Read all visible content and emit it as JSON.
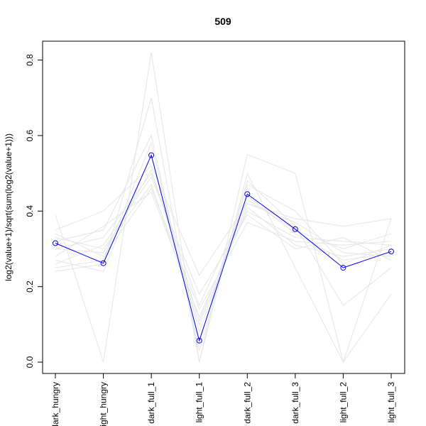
{
  "chart_data": {
    "type": "line",
    "title": "509",
    "xlabel": "",
    "ylabel": "log2(value+1)/sqrt(sum(log2(value+1)))",
    "categories": [
      "dark_hungry",
      "light_hungry",
      "dark_full_1",
      "light_full_1",
      "dark_full_2",
      "dark_full_3",
      "light_full_2",
      "light_full_3"
    ],
    "ylim": [
      -0.03,
      0.85
    ],
    "yticks": [
      0.0,
      0.2,
      0.4,
      0.6,
      0.8
    ],
    "ytick_labels": [
      "0.0",
      "0.2",
      "0.4",
      "0.6",
      "0.8"
    ],
    "grid": false,
    "highlight_color": "#0000ff",
    "background_color": "#e6e6e6",
    "highlight": {
      "values": [
        0.315,
        0.262,
        0.548,
        0.057,
        0.445,
        0.352,
        0.25,
        0.293
      ]
    },
    "background_series": [
      {
        "values": [
          0.39,
          0.0,
          0.82,
          0.0,
          0.55,
          0.5,
          0.0,
          0.38
        ]
      },
      {
        "values": [
          0.24,
          0.26,
          0.7,
          0.0,
          0.5,
          0.25,
          0.0,
          0.18
        ]
      },
      {
        "values": [
          0.35,
          0.4,
          0.52,
          0.23,
          0.42,
          0.38,
          0.36,
          0.38
        ]
      },
      {
        "values": [
          0.3,
          0.33,
          0.5,
          0.15,
          0.43,
          0.35,
          0.3,
          0.34
        ]
      },
      {
        "values": [
          0.28,
          0.36,
          0.45,
          0.12,
          0.4,
          0.33,
          0.32,
          0.31
        ]
      },
      {
        "values": [
          0.33,
          0.3,
          0.47,
          0.1,
          0.41,
          0.31,
          0.28,
          0.3
        ]
      },
      {
        "values": [
          0.25,
          0.27,
          0.58,
          0.05,
          0.48,
          0.36,
          0.15,
          0.25
        ]
      },
      {
        "values": [
          0.34,
          0.28,
          0.46,
          0.14,
          0.37,
          0.32,
          0.31,
          0.32
        ]
      },
      {
        "values": [
          0.27,
          0.24,
          0.55,
          0.08,
          0.44,
          0.34,
          0.27,
          0.29
        ]
      },
      {
        "values": [
          0.32,
          0.35,
          0.6,
          0.03,
          0.47,
          0.4,
          0.26,
          0.31
        ]
      },
      {
        "values": [
          0.26,
          0.31,
          0.49,
          0.18,
          0.39,
          0.3,
          0.33,
          0.27
        ]
      },
      {
        "values": [
          0.3,
          0.29,
          0.51,
          0.11,
          0.42,
          0.37,
          0.29,
          0.28
        ]
      }
    ]
  }
}
